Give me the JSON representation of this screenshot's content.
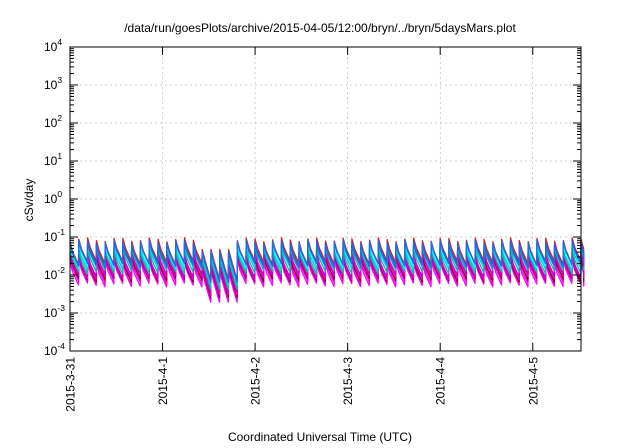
{
  "chart_data": {
    "type": "line",
    "title": "/data/run/goesPlots/archive/2015-04-05/12:00/bryn/../bryn/5daysMars.plot",
    "xlabel": "Coordinated Universal Time (UTC)",
    "ylabel": "cSv/day",
    "y_scale": "log",
    "ylim": [
      0.0001,
      10000
    ],
    "x_start_day": "2015-03-31",
    "xlim_days": [
      0,
      5.55
    ],
    "x_tick_labels": [
      "2015-3-31",
      "2015-4-1",
      "2015-4-2",
      "2015-4-3",
      "2015-4-4",
      "2015-4-5"
    ],
    "y_ticks": [
      {
        "value": 0.0001,
        "base": "10",
        "exp": "-4"
      },
      {
        "value": 0.001,
        "base": "10",
        "exp": "-3"
      },
      {
        "value": 0.01,
        "base": "10",
        "exp": "-2"
      },
      {
        "value": 0.1,
        "base": "10",
        "exp": "-1"
      },
      {
        "value": 1,
        "base": "10",
        "exp": "0"
      },
      {
        "value": 10,
        "base": "10",
        "exp": "1"
      },
      {
        "value": 100,
        "base": "10",
        "exp": "2"
      },
      {
        "value": 1000,
        "base": "10",
        "exp": "3"
      },
      {
        "value": 10000,
        "base": "10",
        "exp": "4"
      }
    ],
    "grid": true,
    "legend": "none",
    "sawtooth_period_days": 0.0952,
    "dip_window_days": [
      1.42,
      1.72
    ],
    "series": [
      {
        "color": "#ff00ff",
        "peak": 0.022,
        "trough": 0.0055
      },
      {
        "color": "#ee00ee",
        "peak": 0.026,
        "trough": 0.0065
      },
      {
        "color": "#8b0000",
        "peak": 0.03,
        "trough": 0.0075
      },
      {
        "color": "#dd00dd",
        "peak": 0.034,
        "trough": 0.0085
      },
      {
        "color": "#cc00cc",
        "peak": 0.038,
        "trough": 0.0095
      },
      {
        "color": "#00bfa5",
        "peak": 0.048,
        "trough": 0.012
      },
      {
        "color": "#00ced1",
        "peak": 0.058,
        "trough": 0.015
      },
      {
        "color": "#00ffff",
        "peak": 0.066,
        "trough": 0.017
      },
      {
        "color": "#d22020",
        "peak": 0.085,
        "trough": 0.021
      },
      {
        "color": "#3355dd",
        "peak": 0.075,
        "trough": 0.019
      },
      {
        "color": "#1e6fdd",
        "peak": 0.07,
        "trough": 0.018
      }
    ]
  }
}
